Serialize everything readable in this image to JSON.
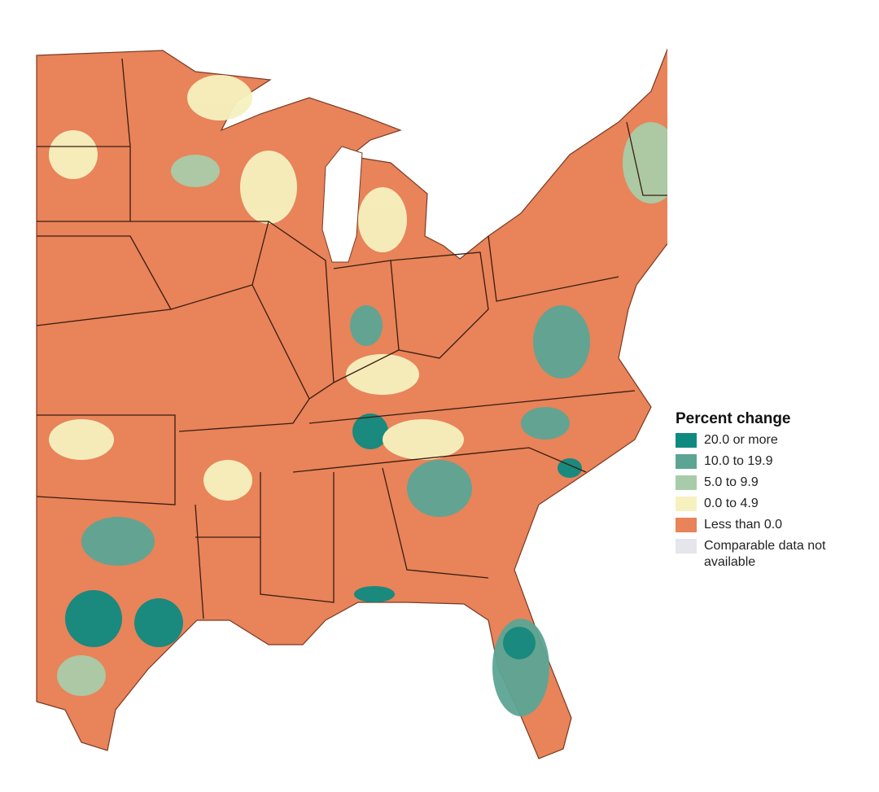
{
  "legend": {
    "title": "Percent change",
    "items": [
      {
        "label": "20.0 or more",
        "color": "#0f8a80"
      },
      {
        "label": "10.0 to 19.9",
        "color": "#5ca594"
      },
      {
        "label": "5.0 to 9.9",
        "color": "#a9cca8"
      },
      {
        "label": "0.0 to 4.9",
        "color": "#f6f1bf"
      },
      {
        "label": "Less than 0.0",
        "color": "#e8835a"
      },
      {
        "label": "Comparable data not available",
        "color": "#e5e6eb"
      }
    ]
  }
}
